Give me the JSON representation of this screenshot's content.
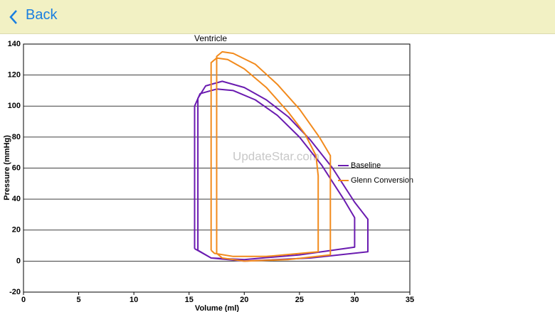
{
  "header": {
    "back": "Back"
  },
  "chart_data": {
    "type": "line",
    "title": "Ventricle",
    "xlabel": "Volume (ml)",
    "ylabel": "Pressure (mmHg)",
    "watermark": "UpdateStar.com",
    "xlim": [
      0,
      35
    ],
    "xticks": [
      0,
      5,
      10,
      15,
      20,
      25,
      30,
      35
    ],
    "ylim": [
      -20,
      140
    ],
    "yticks": [
      -20,
      0,
      20,
      40,
      60,
      80,
      100,
      120,
      140
    ],
    "grid": true,
    "series": [
      {
        "name": "Baseline",
        "color": "#6a1bb0",
        "x": [
          15.5,
          15.5,
          16,
          17.5,
          19,
          21,
          23,
          25,
          27,
          29,
          30,
          30,
          25,
          20,
          17,
          15.5,
          null,
          15.8,
          15.8,
          16.5,
          18,
          20,
          22,
          24,
          26,
          28,
          30,
          31.2,
          31.2,
          26,
          20,
          17,
          15.8
        ],
        "values": [
          8,
          100,
          108,
          111,
          110,
          104,
          94,
          80,
          62,
          40,
          28,
          9,
          4,
          1,
          2,
          8,
          null,
          7,
          105,
          113,
          116,
          112,
          104,
          93,
          78,
          60,
          38,
          27,
          6,
          2,
          0,
          2,
          7
        ]
      },
      {
        "name": "Glenn Conversion",
        "color": "#f28a1c",
        "x": [
          17,
          17,
          17.5,
          18.5,
          20,
          22,
          24,
          25.5,
          26.5,
          26.7,
          26.7,
          22,
          19,
          17.3,
          17,
          null,
          17.5,
          17.5,
          18,
          19,
          21,
          23,
          25,
          26.8,
          27.8,
          27.8,
          24,
          20,
          18,
          17.5
        ],
        "values": [
          7,
          128,
          131,
          130,
          124,
          112,
          96,
          82,
          68,
          55,
          6,
          3,
          3,
          5,
          7,
          null,
          5,
          132,
          135,
          134,
          127,
          114,
          98,
          80,
          68,
          4,
          1,
          0,
          2,
          5
        ]
      }
    ]
  }
}
